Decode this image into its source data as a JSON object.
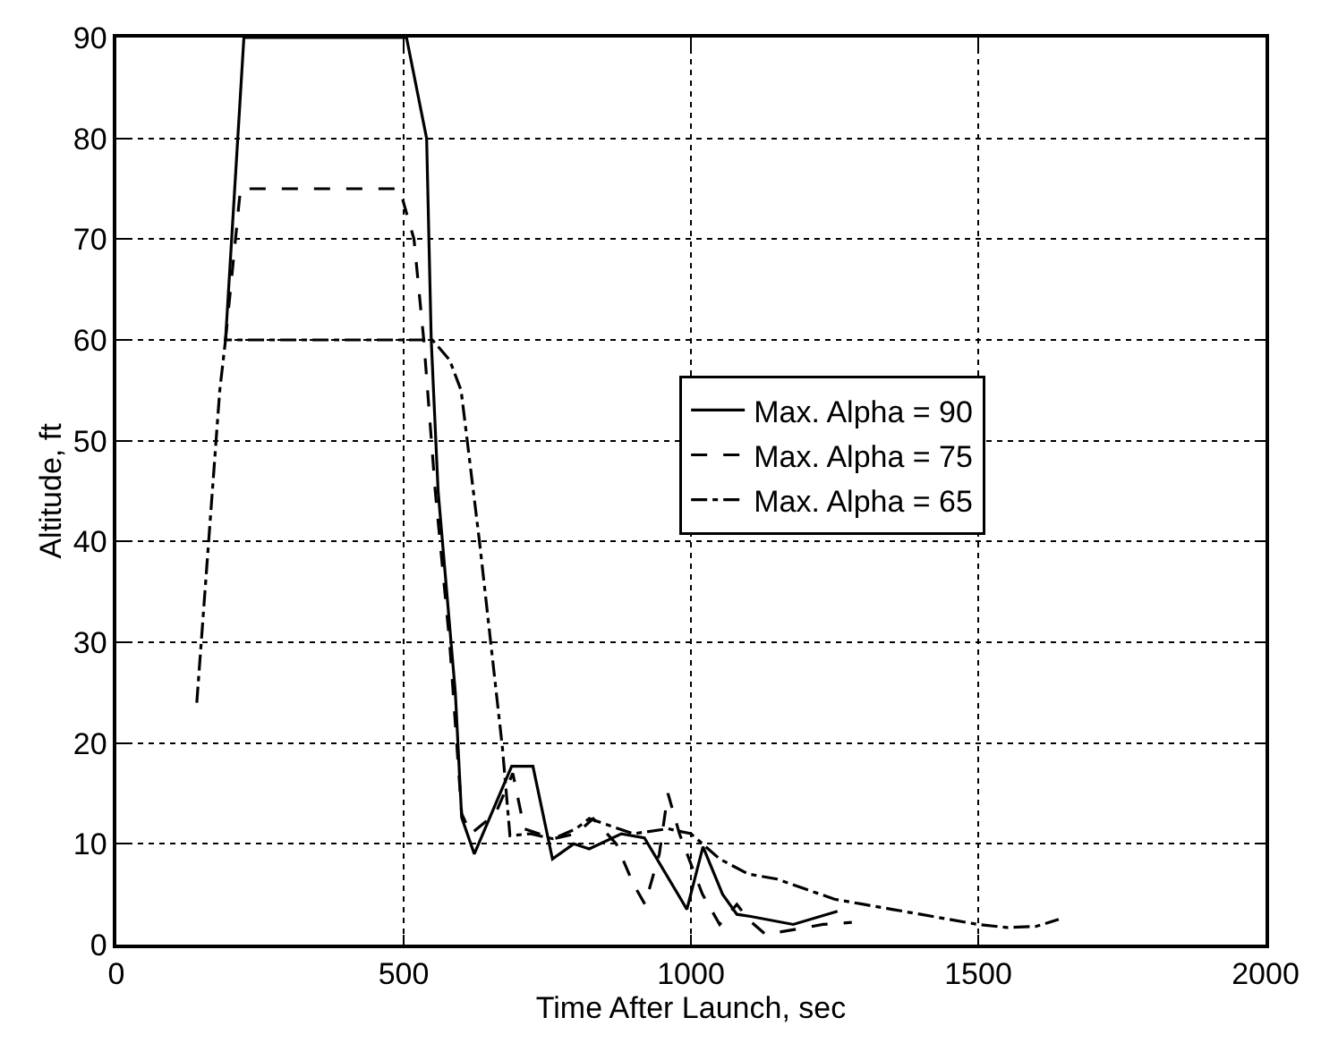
{
  "chart_data": {
    "type": "line",
    "xlabel": "Time After Launch, sec",
    "ylabel": "Altitude, ft",
    "xlim": [
      0,
      2000
    ],
    "xticks": [
      0,
      500,
      1000,
      1500,
      2000
    ],
    "ylim": [
      0,
      90
    ],
    "yticks": [
      0,
      10,
      20,
      30,
      40,
      50,
      60,
      70,
      80,
      90
    ],
    "grid": true,
    "legend": "right",
    "marker": "none",
    "series": [
      {
        "name": "Max. Alpha = 90",
        "color": "#000000",
        "line_style": "solid",
        "x": [
          190,
          222,
          505,
          540,
          548,
          560,
          590,
          601,
          623,
          688,
          725,
          759,
          796,
          823,
          879,
          919,
          993,
          1021,
          1055,
          1080,
          1104,
          1178,
          1255
        ],
        "values": [
          60,
          90,
          90,
          80,
          60,
          45,
          25,
          12.6,
          9,
          17.7,
          17.7,
          8.5,
          10,
          9.5,
          11,
          10.6,
          3.5,
          9.7,
          5,
          3,
          2.8,
          2,
          3.3
        ]
      },
      {
        "name": "Max. Alpha = 75",
        "color": "#000000",
        "line_style": "dashed",
        "x": [
          190,
          216,
          493,
          518,
          535,
          555,
          580,
          601,
          617,
          660,
          690,
          710,
          760,
          800,
          830,
          870,
          900,
          920,
          945,
          960,
          980,
          1000,
          1020,
          1050,
          1080,
          1100,
          1130,
          1180,
          1230,
          1280
        ],
        "values": [
          60,
          75,
          75,
          70,
          60,
          45,
          30,
          13,
          11,
          13,
          17,
          11.5,
          10.5,
          11,
          12.5,
          10,
          6,
          4,
          9,
          15,
          11,
          8,
          5,
          2,
          4,
          2.5,
          1,
          1.5,
          2,
          2.2
        ]
      },
      {
        "name": "Max. Alpha = 65",
        "color": "#000000",
        "line_style": "dashdot",
        "x": [
          140,
          180,
          190,
          500,
          550,
          580,
          600,
          632,
          672,
          685,
          720,
          760,
          800,
          823,
          900,
          960,
          1000,
          1050,
          1100,
          1150,
          1200,
          1250,
          1300,
          1350,
          1400,
          1450,
          1500,
          1550,
          1600,
          1640
        ],
        "values": [
          24,
          55,
          60,
          60,
          60,
          58,
          55,
          40,
          19.5,
          10.8,
          11,
          10.5,
          11.5,
          12.5,
          11,
          11.5,
          11,
          8.5,
          7,
          6.5,
          5.5,
          4.5,
          4,
          3.5,
          3,
          2.5,
          2,
          1.7,
          1.8,
          2.5
        ]
      }
    ]
  }
}
